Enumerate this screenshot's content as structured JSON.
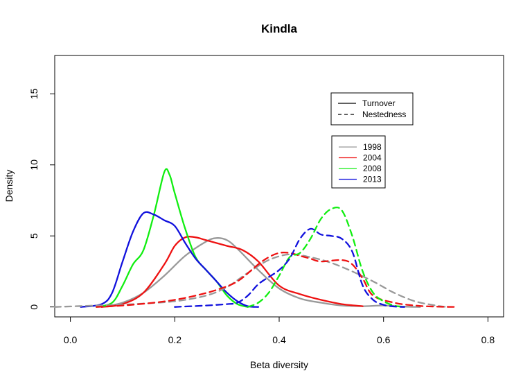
{
  "chart_data": {
    "type": "line",
    "title": "Kindla",
    "xlabel": "Beta diversity",
    "ylabel": "Density",
    "xlim": [
      -0.03,
      0.83
    ],
    "ylim": [
      -0.7,
      17.7
    ],
    "x_ticks": [
      0.0,
      0.2,
      0.4,
      0.6,
      0.8
    ],
    "x_tick_labels": [
      "0.0",
      "0.2",
      "0.4",
      "0.6",
      "0.8"
    ],
    "y_ticks": [
      0,
      5,
      10,
      15
    ],
    "y_tick_labels": [
      "0",
      "5",
      "10",
      "15"
    ],
    "grid": false,
    "legend_type": {
      "placement": "top-right",
      "entries": [
        {
          "label": "Turnover",
          "linestyle": "solid"
        },
        {
          "label": "Nestedness",
          "linestyle": "dashed"
        }
      ]
    },
    "legend_year": {
      "placement": "right-middle",
      "entries": [
        {
          "label": "1998",
          "color": "#999999"
        },
        {
          "label": "2004",
          "color": "#ee1111"
        },
        {
          "label": "2008",
          "color": "#11ee11"
        },
        {
          "label": "2013",
          "color": "#1111dd"
        }
      ]
    },
    "series": [
      {
        "year": "1998",
        "kind": "Turnover",
        "color": "#999999",
        "dashed": false,
        "points": [
          [
            0.06,
            0.0
          ],
          [
            0.1,
            0.3
          ],
          [
            0.14,
            1.0
          ],
          [
            0.18,
            2.2
          ],
          [
            0.22,
            3.6
          ],
          [
            0.26,
            4.6
          ],
          [
            0.28,
            4.85
          ],
          [
            0.3,
            4.7
          ],
          [
            0.32,
            4.1
          ],
          [
            0.36,
            2.6
          ],
          [
            0.4,
            1.3
          ],
          [
            0.44,
            0.6
          ],
          [
            0.48,
            0.3
          ],
          [
            0.52,
            0.1
          ],
          [
            0.56,
            0.05
          ],
          [
            0.6,
            0.1
          ],
          [
            0.64,
            0.02
          ],
          [
            0.67,
            0.0
          ]
        ]
      },
      {
        "year": "2004",
        "kind": "Turnover",
        "color": "#ee1111",
        "dashed": false,
        "points": [
          [
            0.06,
            0.0
          ],
          [
            0.1,
            0.2
          ],
          [
            0.14,
            1.0
          ],
          [
            0.18,
            3.0
          ],
          [
            0.2,
            4.3
          ],
          [
            0.22,
            4.9
          ],
          [
            0.24,
            4.9
          ],
          [
            0.26,
            4.7
          ],
          [
            0.3,
            4.3
          ],
          [
            0.33,
            4.0
          ],
          [
            0.36,
            3.2
          ],
          [
            0.4,
            1.5
          ],
          [
            0.44,
            0.9
          ],
          [
            0.48,
            0.5
          ],
          [
            0.52,
            0.2
          ],
          [
            0.56,
            0.05
          ]
        ]
      },
      {
        "year": "2008",
        "kind": "Turnover",
        "color": "#11ee11",
        "dashed": false,
        "points": [
          [
            0.05,
            0.0
          ],
          [
            0.08,
            0.3
          ],
          [
            0.1,
            1.5
          ],
          [
            0.12,
            3.0
          ],
          [
            0.14,
            4.0
          ],
          [
            0.16,
            6.5
          ],
          [
            0.18,
            9.5
          ],
          [
            0.19,
            9.3
          ],
          [
            0.2,
            8.0
          ],
          [
            0.22,
            5.5
          ],
          [
            0.24,
            3.5
          ],
          [
            0.26,
            2.6
          ],
          [
            0.28,
            1.8
          ],
          [
            0.3,
            0.8
          ],
          [
            0.32,
            0.2
          ],
          [
            0.34,
            0.0
          ]
        ]
      },
      {
        "year": "2013",
        "kind": "Turnover",
        "color": "#1111dd",
        "dashed": false,
        "points": [
          [
            0.02,
            0.0
          ],
          [
            0.06,
            0.2
          ],
          [
            0.08,
            1.0
          ],
          [
            0.1,
            3.2
          ],
          [
            0.12,
            5.3
          ],
          [
            0.14,
            6.6
          ],
          [
            0.16,
            6.5
          ],
          [
            0.18,
            6.1
          ],
          [
            0.2,
            5.7
          ],
          [
            0.22,
            4.5
          ],
          [
            0.24,
            3.4
          ],
          [
            0.26,
            2.6
          ],
          [
            0.28,
            1.8
          ],
          [
            0.3,
            1.0
          ],
          [
            0.32,
            0.4
          ],
          [
            0.34,
            0.05
          ],
          [
            0.36,
            0.0
          ]
        ]
      },
      {
        "year": "1998",
        "kind": "Nestedness",
        "color": "#999999",
        "dashed": true,
        "points": [
          [
            -0.03,
            0.0
          ],
          [
            0.05,
            0.1
          ],
          [
            0.12,
            0.2
          ],
          [
            0.2,
            0.4
          ],
          [
            0.26,
            0.8
          ],
          [
            0.3,
            1.4
          ],
          [
            0.34,
            2.4
          ],
          [
            0.38,
            3.3
          ],
          [
            0.42,
            3.7
          ],
          [
            0.46,
            3.5
          ],
          [
            0.5,
            3.1
          ],
          [
            0.54,
            2.5
          ],
          [
            0.58,
            1.8
          ],
          [
            0.62,
            1.0
          ],
          [
            0.66,
            0.4
          ],
          [
            0.7,
            0.1
          ],
          [
            0.72,
            0.0
          ]
        ]
      },
      {
        "year": "2004",
        "kind": "Nestedness",
        "color": "#ee1111",
        "dashed": true,
        "points": [
          [
            0.05,
            0.0
          ],
          [
            0.1,
            0.1
          ],
          [
            0.16,
            0.3
          ],
          [
            0.2,
            0.5
          ],
          [
            0.24,
            0.8
          ],
          [
            0.28,
            1.2
          ],
          [
            0.32,
            1.8
          ],
          [
            0.36,
            3.0
          ],
          [
            0.38,
            3.5
          ],
          [
            0.4,
            3.8
          ],
          [
            0.42,
            3.8
          ],
          [
            0.44,
            3.6
          ],
          [
            0.46,
            3.4
          ],
          [
            0.48,
            3.2
          ],
          [
            0.52,
            3.3
          ],
          [
            0.54,
            3.0
          ],
          [
            0.56,
            2.0
          ],
          [
            0.58,
            0.8
          ],
          [
            0.62,
            0.3
          ],
          [
            0.66,
            0.1
          ],
          [
            0.7,
            0.02
          ],
          [
            0.74,
            0.0
          ]
        ]
      },
      {
        "year": "2008",
        "kind": "Nestedness",
        "color": "#11ee11",
        "dashed": true,
        "points": [
          [
            0.34,
            0.0
          ],
          [
            0.36,
            0.3
          ],
          [
            0.38,
            1.0
          ],
          [
            0.4,
            2.2
          ],
          [
            0.42,
            3.5
          ],
          [
            0.44,
            3.8
          ],
          [
            0.46,
            4.8
          ],
          [
            0.48,
            6.2
          ],
          [
            0.5,
            6.9
          ],
          [
            0.52,
            6.8
          ],
          [
            0.54,
            5.0
          ],
          [
            0.56,
            2.5
          ],
          [
            0.58,
            1.0
          ],
          [
            0.6,
            0.4
          ],
          [
            0.62,
            0.1
          ],
          [
            0.64,
            0.0
          ]
        ]
      },
      {
        "year": "2013",
        "kind": "Nestedness",
        "color": "#1111dd",
        "dashed": true,
        "points": [
          [
            0.2,
            0.0
          ],
          [
            0.26,
            0.1
          ],
          [
            0.3,
            0.2
          ],
          [
            0.32,
            0.3
          ],
          [
            0.34,
            0.8
          ],
          [
            0.36,
            1.6
          ],
          [
            0.38,
            2.1
          ],
          [
            0.4,
            2.6
          ],
          [
            0.42,
            3.4
          ],
          [
            0.44,
            4.8
          ],
          [
            0.46,
            5.5
          ],
          [
            0.48,
            5.1
          ],
          [
            0.5,
            5.0
          ],
          [
            0.52,
            4.8
          ],
          [
            0.54,
            3.9
          ],
          [
            0.56,
            1.5
          ],
          [
            0.58,
            0.5
          ],
          [
            0.6,
            0.15
          ],
          [
            0.62,
            0.03
          ],
          [
            0.64,
            0.0
          ]
        ]
      }
    ]
  }
}
